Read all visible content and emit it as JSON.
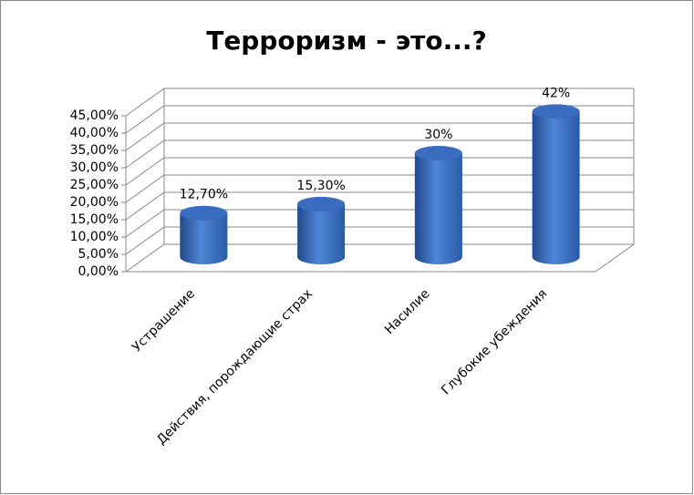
{
  "chart_data": {
    "type": "bar",
    "title": "Терроризм - это...?",
    "categories": [
      "Устрашение",
      "Действия, порождающие страх",
      "Насилие",
      "Глубокие убеждения"
    ],
    "values": [
      12.7,
      15.3,
      30,
      42
    ],
    "value_labels": [
      "12,70%",
      "15,30%",
      "30%",
      "42%"
    ],
    "color": "#3a6cc0",
    "ylim": [
      0,
      45
    ],
    "yticks": [
      {
        "value": 0,
        "label": "0,00%"
      },
      {
        "value": 5,
        "label": "5,00%"
      },
      {
        "value": 10,
        "label": "10,00%"
      },
      {
        "value": 15,
        "label": "15,00%"
      },
      {
        "value": 20,
        "label": "20,00%"
      },
      {
        "value": 25,
        "label": "25,00%"
      },
      {
        "value": 30,
        "label": "30,00%"
      },
      {
        "value": 35,
        "label": "35,00%"
      },
      {
        "value": 40,
        "label": "40,00%"
      },
      {
        "value": 45,
        "label": "45,00%"
      }
    ],
    "grid": true
  }
}
